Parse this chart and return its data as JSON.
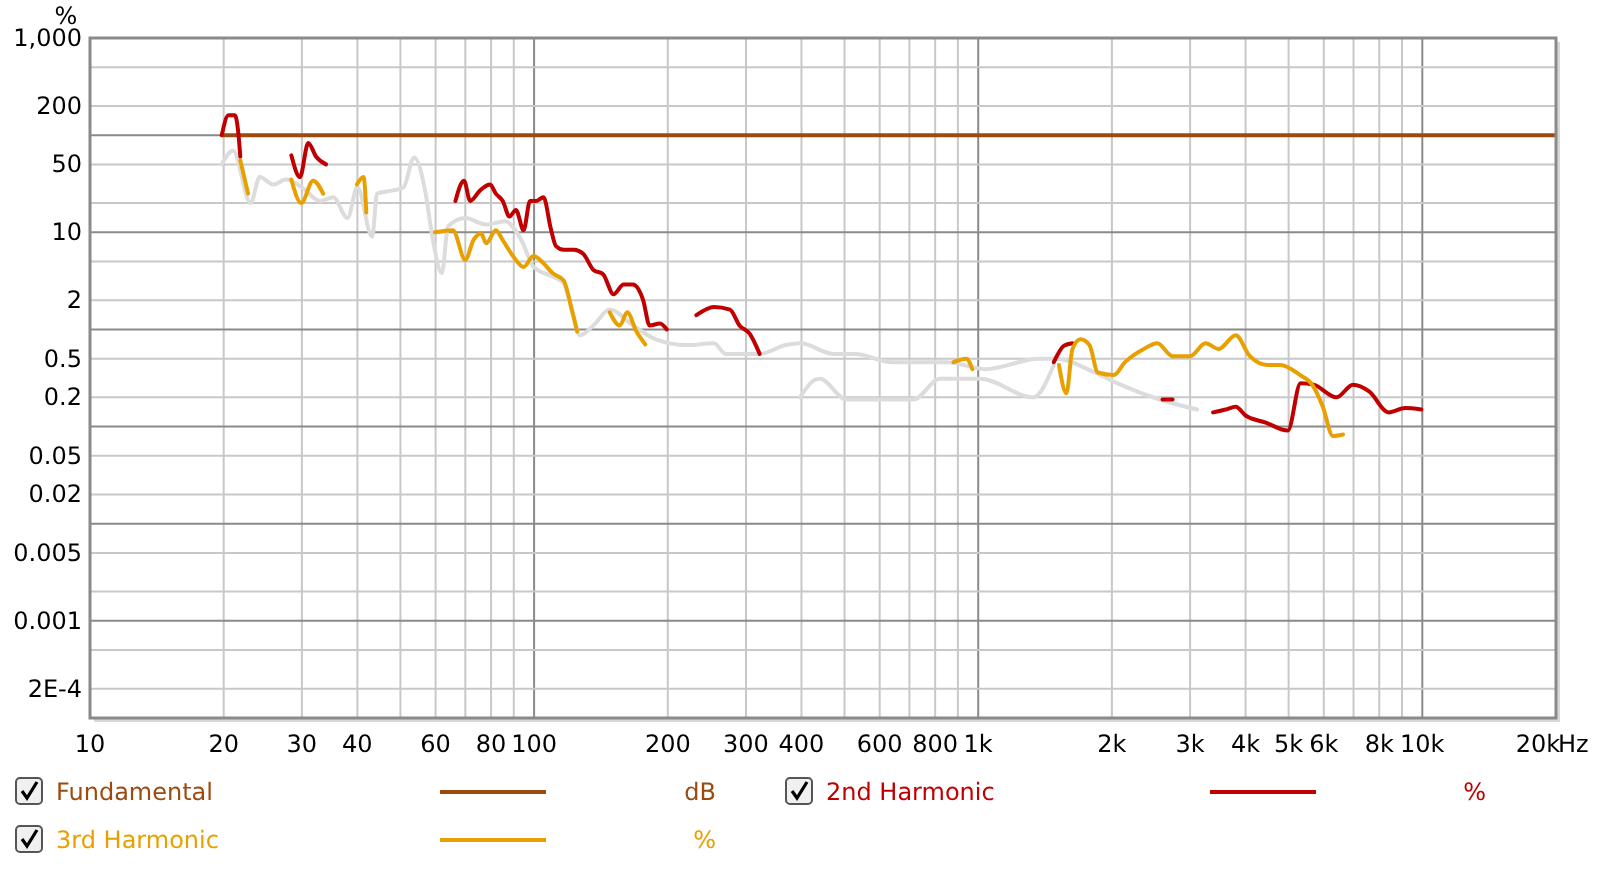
{
  "chart_data": {
    "type": "line",
    "ylabel": "%",
    "log": "xy",
    "grid": true,
    "legend": "bottom",
    "marker": "none",
    "line_style": "solid",
    "xlim": [
      10,
      20000
    ],
    "ylim": [
      0.0001,
      1000
    ],
    "xticks": [
      10,
      20,
      30,
      40,
      {
        "value": 50,
        "label": null
      },
      60,
      {
        "value": 70,
        "label": null
      },
      80,
      {
        "value": 90,
        "label": null
      },
      100,
      200,
      300,
      400,
      {
        "value": 500,
        "label": null
      },
      600,
      {
        "value": 700,
        "label": null
      },
      800,
      {
        "value": 900,
        "label": null
      },
      {
        "value": 1000,
        "label": "1k"
      },
      {
        "value": 2000,
        "label": "2k"
      },
      {
        "value": 3000,
        "label": "3k"
      },
      {
        "value": 4000,
        "label": "4k"
      },
      {
        "value": 5000,
        "label": "5k"
      },
      {
        "value": 6000,
        "label": "6k"
      },
      {
        "value": 7000,
        "label": null
      },
      {
        "value": 8000,
        "label": "8k"
      },
      {
        "value": 9000,
        "label": null
      },
      {
        "value": 10000,
        "label": "10k"
      },
      {
        "value": 20000,
        "label": "20k"
      }
    ],
    "xlabel": "Hz",
    "annotations": [
      "dB",
      "%",
      "%"
    ],
    "yticks": [
      {
        "value": 1000,
        "label": "1,000"
      },
      {
        "value": 500,
        "label": null
      },
      200,
      {
        "value": 100,
        "label": null
      },
      50,
      {
        "value": 20,
        "label": null
      },
      10,
      {
        "value": 5,
        "label": null
      },
      2,
      {
        "value": 1,
        "label": null
      },
      0.5,
      0.2,
      {
        "value": 0.1,
        "label": null
      },
      0.05,
      0.02,
      {
        "value": 0.01,
        "label": null
      },
      0.005,
      {
        "value": 0.002,
        "label": null
      },
      0.001,
      {
        "value": 0.0005,
        "label": null
      },
      {
        "value": 0.0002,
        "label": "2E-4"
      }
    ],
    "series": [
      {
        "color": "#dcdcdc",
        "x": [
          19.8,
          21,
          23,
          24.1,
          25.9,
          27.6,
          30,
          33,
          35.3,
          38,
          40,
          43.2,
          44.3,
          48.2,
          50.8,
          53.7,
          57,
          59,
          62,
          64,
          70,
          78,
          86,
          94,
          99.7,
          110,
          116.5,
          122,
          127,
          136,
          148,
          167,
          188,
          221,
          254,
          270,
          322,
          369,
          398,
          472,
          528,
          640,
          850,
          1040,
          1370,
          1500,
          1830,
          2090,
          2560,
          3110
        ],
        "values": [
          50,
          69,
          20,
          37,
          31,
          35,
          29,
          21,
          23,
          14,
          29,
          9,
          25,
          27,
          29,
          59,
          25,
          9,
          3.8,
          11.5,
          14,
          12,
          13,
          8,
          4.4,
          3.5,
          3,
          1.5,
          0.87,
          1.1,
          1.6,
          1.1,
          0.79,
          0.69,
          0.72,
          0.56,
          0.56,
          0.69,
          0.72,
          0.56,
          0.56,
          0.46,
          0.46,
          0.39,
          0.5,
          0.5,
          0.36,
          0.27,
          0.19,
          0.15
        ]
      },
      {
        "color": "#dcdcdc",
        "x": [
          397,
          427,
          440,
          505,
          590,
          715,
          820,
          1010,
          1330,
          1480
        ],
        "values": [
          0.2,
          0.3,
          0.31,
          0.19,
          0.19,
          0.19,
          0.31,
          0.31,
          0.2,
          0.43
        ]
      },
      {
        "name": "Fundamental",
        "color": "#9c4a0f",
        "x": [
          19.8,
          20000
        ],
        "values": [
          100,
          100
        ]
      },
      {
        "name": "2nd Harmonic",
        "color": "#c00000",
        "x": [
          19.8,
          20.5,
          21.2,
          21.6,
          21.8,
          25,
          28.4,
          29.7,
          31,
          32.3,
          34,
          50,
          66.5,
          69.5,
          71.8,
          75.6,
          79.6,
          82,
          85,
          88,
          91,
          94.7,
          97.9,
          101,
          105,
          109,
          112,
          116.5,
          123,
          129,
          136,
          143,
          151,
          159,
          167,
          176,
          182,
          192,
          199,
          215,
          232,
          254,
          276,
          290,
          306,
          322,
          900,
          1480,
          1560,
          1630,
          2100,
          2600,
          2740,
          3000,
          3380,
          3610,
          3800,
          4000,
          4440,
          4980,
          5320,
          5690,
          6410,
          6980,
          7590,
          8400,
          9150,
          9950
        ],
        "values": [
          100,
          160,
          160,
          100,
          60,
          null,
          62,
          37,
          83,
          60,
          50,
          null,
          21,
          34,
          21,
          27,
          31,
          25,
          21,
          14.5,
          17,
          10.5,
          21,
          21,
          23,
          11,
          7.2,
          6.6,
          6.6,
          6,
          4.1,
          3.7,
          2.3,
          2.9,
          2.9,
          2,
          1.1,
          1.15,
          1,
          null,
          1.4,
          1.7,
          1.6,
          1.1,
          0.9,
          0.56,
          null,
          0.46,
          0.68,
          0.72,
          null,
          0.19,
          0.19,
          null,
          0.14,
          0.15,
          0.16,
          0.13,
          0.11,
          0.091,
          0.28,
          0.27,
          0.2,
          0.27,
          0.23,
          0.14,
          0.155,
          0.15
        ]
      },
      {
        "name": "3rd Harmonic",
        "color": "#e8a000",
        "x": [
          21.8,
          22.7,
          25,
          28.4,
          29.9,
          31.8,
          33.5,
          37,
          39.9,
          41.3,
          41.9,
          50,
          59.8,
          65.6,
          70,
          73,
          76,
          78,
          82,
          85,
          89.6,
          94.7,
          99.7,
          105,
          110,
          116.5,
          122,
          125,
          135,
          148,
          156,
          162,
          170,
          178,
          500,
          880,
          940,
          970,
          1200,
          1520,
          1580,
          1630,
          1700,
          1780,
          1860,
          2020,
          2140,
          2360,
          2530,
          2740,
          3000,
          3250,
          3480,
          3800,
          4090,
          4480,
          4790,
          5300,
          5650,
          5970,
          6290,
          6630
        ],
        "values": [
          55,
          25,
          null,
          35,
          20,
          34,
          25,
          null,
          31,
          37,
          16,
          null,
          10,
          10.5,
          5.2,
          8.3,
          9.7,
          7.7,
          10.5,
          8.3,
          5.7,
          4.4,
          5.7,
          4.8,
          3.8,
          3.2,
          1.5,
          0.95,
          null,
          1.5,
          1.1,
          1.5,
          0.95,
          0.7,
          null,
          0.46,
          0.5,
          0.39,
          null,
          0.43,
          0.22,
          0.63,
          0.79,
          0.69,
          0.36,
          0.34,
          0.46,
          0.63,
          0.72,
          0.53,
          0.53,
          0.72,
          0.63,
          0.87,
          0.53,
          0.43,
          0.43,
          0.34,
          0.27,
          0.16,
          0.08,
          0.083
        ]
      }
    ]
  }
}
